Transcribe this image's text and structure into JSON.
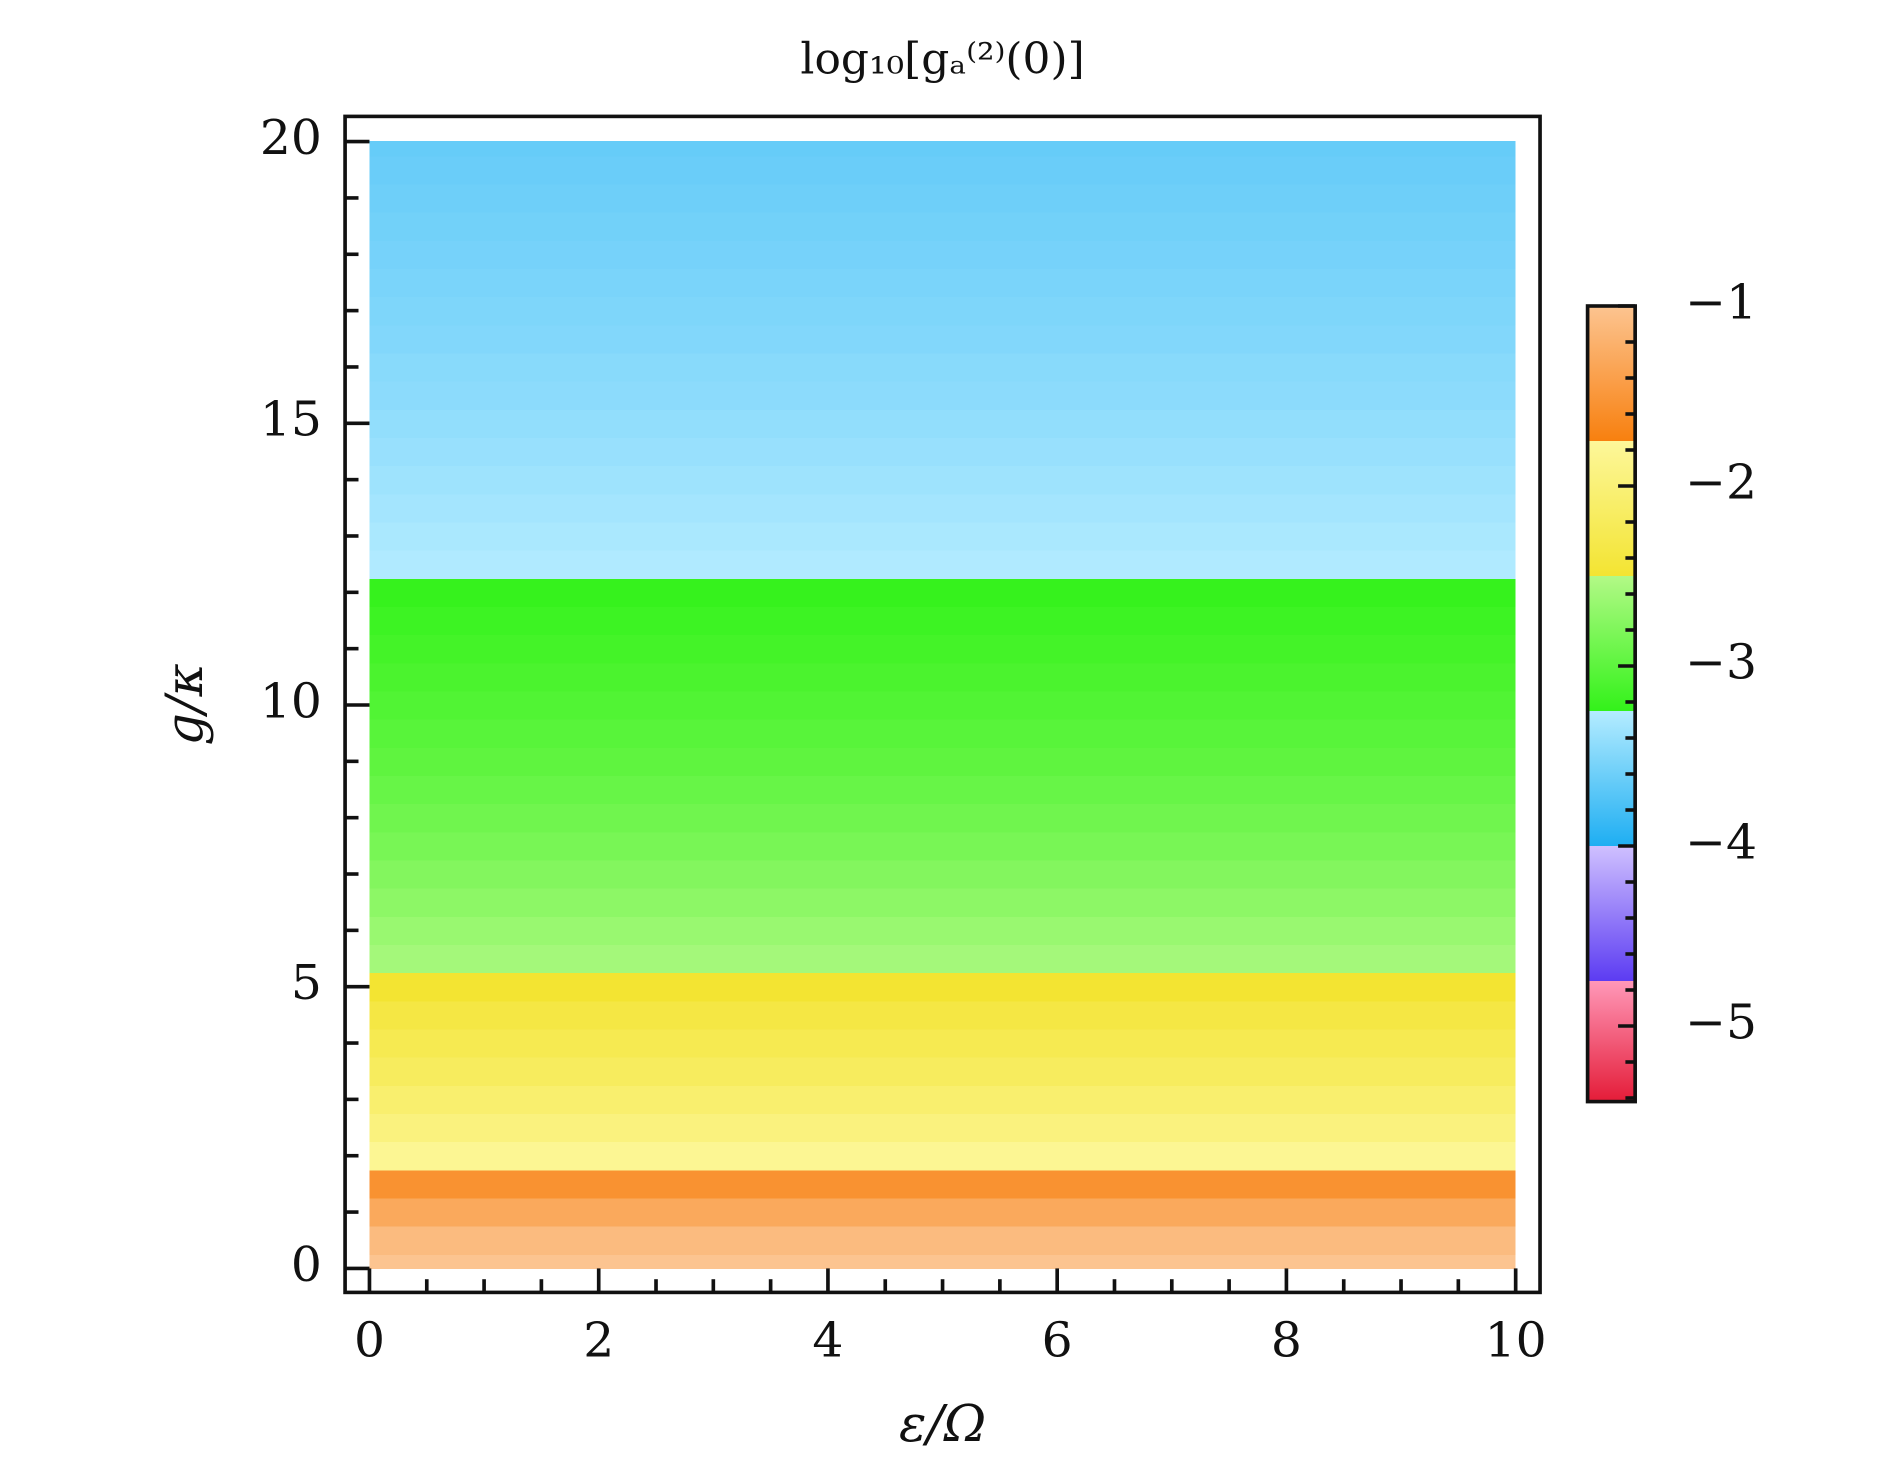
{
  "chart_data": {
    "type": "heatmap",
    "title": "log₁₀[gₐ⁽²⁾(0)]",
    "xlabel": "ε/Ω",
    "ylabel": "g/κ",
    "x": [
      0,
      10
    ],
    "y": [
      0,
      0.5,
      1,
      1.5,
      2,
      2.5,
      3,
      3.5,
      4,
      4.5,
      5,
      5.5,
      6,
      6.5,
      7,
      7.5,
      8,
      8.5,
      9,
      9.5,
      10,
      10.5,
      11,
      11.5,
      12,
      12.5,
      13,
      13.5,
      14,
      14.5,
      15,
      15.5,
      16,
      16.5,
      17,
      17.5,
      18,
      18.5,
      19,
      19.5,
      20
    ],
    "z": [
      -1.0,
      -1.1,
      -1.3,
      -1.55,
      -1.8,
      -1.95,
      -2.07,
      -2.18,
      -2.28,
      -2.37,
      -2.5,
      -2.58,
      -2.65,
      -2.72,
      -2.78,
      -2.84,
      -2.89,
      -2.94,
      -2.99,
      -3.03,
      -3.07,
      -3.11,
      -3.15,
      -3.19,
      -3.23,
      -3.27,
      -3.3,
      -3.33,
      -3.36,
      -3.39,
      -3.42,
      -3.45,
      -3.47,
      -3.5,
      -3.52,
      -3.54,
      -3.56,
      -3.58,
      -3.6,
      -3.62,
      -3.64
    ],
    "xlim": [
      0,
      10
    ],
    "ylim": [
      0,
      20
    ],
    "xticks": [
      0,
      2,
      4,
      6,
      8,
      10
    ],
    "yticks": [
      0,
      5,
      10,
      15,
      20
    ],
    "xminorticks": [
      0.5,
      1,
      1.5,
      2.5,
      3,
      3.5,
      4.5,
      5,
      5.5,
      6.5,
      7,
      7.5,
      8.5,
      9,
      9.5
    ],
    "yminorticks": [
      1,
      2,
      3,
      4,
      6,
      7,
      8,
      9,
      11,
      12,
      13,
      14,
      16,
      17,
      18,
      19
    ],
    "colorbar": {
      "lim": [
        -5.42,
        -1
      ],
      "ticks": [
        {
          "value": -1,
          "label": "−1"
        },
        {
          "value": -2,
          "label": "−2"
        },
        {
          "value": -3,
          "label": "−3"
        },
        {
          "value": -4,
          "label": "−4"
        },
        {
          "value": -5,
          "label": "−5"
        }
      ],
      "minorticks": [
        -1.2,
        -1.4,
        -1.6,
        -1.8,
        -2.2,
        -2.4,
        -2.6,
        -2.8,
        -3.2,
        -3.4,
        -3.6,
        -3.8,
        -4.2,
        -4.4,
        -4.6,
        -4.8,
        -5.2,
        -5.4
      ],
      "bands": [
        {
          "from": -1,
          "to": -1.75,
          "colors": [
            "#fcc490",
            "#f8800f"
          ]
        },
        {
          "from": -1.75,
          "to": -2.5,
          "colors": [
            "#fdf79a",
            "#f3e432"
          ]
        },
        {
          "from": -2.5,
          "to": -3.25,
          "colors": [
            "#b2f986",
            "#33f21a"
          ]
        },
        {
          "from": -3.25,
          "to": -4,
          "colors": [
            "#b4ecff",
            "#1eaef2"
          ]
        },
        {
          "from": -4,
          "to": -4.75,
          "colors": [
            "#cfc0ff",
            "#5c3cf2"
          ]
        },
        {
          "from": -4.75,
          "to": -5.42,
          "colors": [
            "#ff98b8",
            "#e41c38"
          ]
        }
      ]
    }
  }
}
